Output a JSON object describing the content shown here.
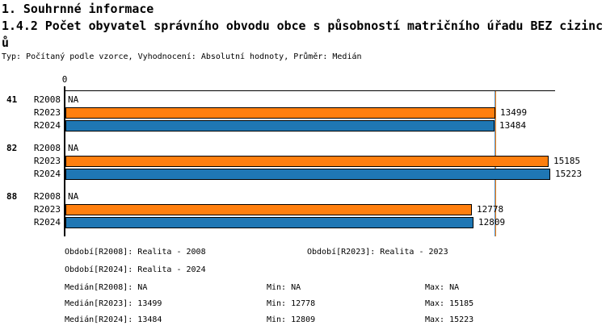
{
  "header": {
    "title": "1. Souhrnné informace",
    "subtitle": "1.4.2 Počet obyvatel správního obvodu obce s působností matričního úřadu BEZ cizinců",
    "meta": "Typ: Počítaný podle vzorce, Vyhodnocení: Absolutní hodnoty, Průměr: Medián"
  },
  "chart_data": {
    "type": "bar",
    "orientation": "horizontal",
    "x_origin_tick": "0",
    "na_label": "NA",
    "xlim": [
      0,
      15400
    ],
    "grid": false,
    "groups": [
      {
        "label": "41",
        "bars": [
          {
            "series": "R2008",
            "value": null
          },
          {
            "series": "R2023",
            "value": 13499
          },
          {
            "series": "R2024",
            "value": 13484
          }
        ]
      },
      {
        "label": "82",
        "bars": [
          {
            "series": "R2008",
            "value": null
          },
          {
            "series": "R2023",
            "value": 15185
          },
          {
            "series": "R2024",
            "value": 15223
          }
        ]
      },
      {
        "label": "88",
        "bars": [
          {
            "series": "R2008",
            "value": null
          },
          {
            "series": "R2023",
            "value": 12778
          },
          {
            "series": "R2024",
            "value": 12809
          }
        ]
      }
    ],
    "series_colors": {
      "R2008": "#ffffff",
      "R2023": "#ff7f0e",
      "R2024": "#1f77b4"
    },
    "median_lines": [
      {
        "series": "R2024",
        "value": 13484,
        "color": "#4f94cd"
      },
      {
        "series": "R2023",
        "value": 13499,
        "color": "#ff7f0e"
      }
    ]
  },
  "legend": {
    "period_labels": [
      "Období[R2008]: Realita - 2008",
      "Období[R2023]: Realita - 2023",
      "Období[R2024]: Realita - 2024"
    ]
  },
  "stats_rows": [
    {
      "median": "Medián[R2008]: NA",
      "min": "Min: NA",
      "max": "Max: NA"
    },
    {
      "median": "Medián[R2023]: 13499",
      "min": "Min: 12778",
      "max": "Max: 15185"
    },
    {
      "median": "Medián[R2024]: 13484",
      "min": "Min: 12809",
      "max": "Max: 15223"
    }
  ]
}
